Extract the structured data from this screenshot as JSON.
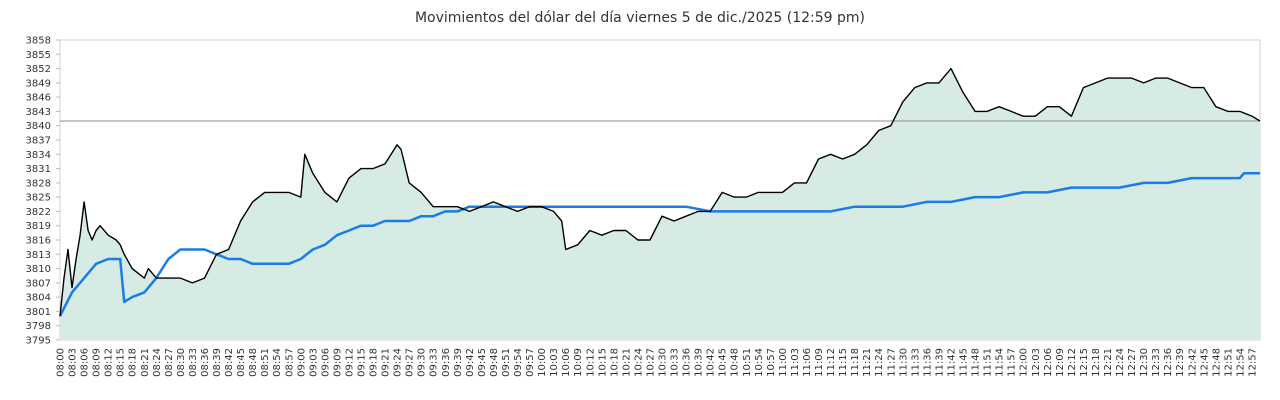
{
  "chart_data": {
    "type": "line",
    "title": "Movimientos del dólar del día viernes 5 de dic./2025 (12:59 pm)",
    "xlabel": "",
    "ylabel": "",
    "ylim": [
      3795,
      3858
    ],
    "y_ticks": [
      3795,
      3798,
      3801,
      3804,
      3807,
      3810,
      3813,
      3816,
      3819,
      3822,
      3825,
      3828,
      3831,
      3834,
      3837,
      3840,
      3843,
      3846,
      3849,
      3852,
      3855,
      3858
    ],
    "x_ticks": [
      "08:00",
      "08:03",
      "08:06",
      "08:09",
      "08:12",
      "08:15",
      "08:18",
      "08:21",
      "08:24",
      "08:27",
      "08:30",
      "08:33",
      "08:36",
      "08:39",
      "08:42",
      "08:45",
      "08:48",
      "08:51",
      "08:54",
      "08:57",
      "09:00",
      "09:03",
      "09:06",
      "09:09",
      "09:12",
      "09:15",
      "09:18",
      "09:21",
      "09:24",
      "09:27",
      "09:30",
      "09:33",
      "09:36",
      "09:39",
      "09:42",
      "09:45",
      "09:48",
      "09:51",
      "09:54",
      "09:57",
      "10:00",
      "10:03",
      "10:06",
      "10:09",
      "10:12",
      "10:15",
      "10:18",
      "10:21",
      "10:24",
      "10:27",
      "10:30",
      "10:33",
      "10:36",
      "10:39",
      "10:42",
      "10:45",
      "10:48",
      "10:51",
      "10:54",
      "10:57",
      "11:00",
      "11:03",
      "11:06",
      "11:09",
      "11:12",
      "11:15",
      "11:18",
      "11:21",
      "11:24",
      "11:27",
      "11:30",
      "11:33",
      "11:36",
      "11:39",
      "11:42",
      "11:45",
      "11:48",
      "11:51",
      "11:54",
      "11:57",
      "12:00",
      "12:03",
      "12:06",
      "12:09",
      "12:12",
      "12:15",
      "12:18",
      "12:21",
      "12:24",
      "12:27",
      "12:30",
      "12:33",
      "12:36",
      "12:39",
      "12:42",
      "12:45",
      "12:48",
      "12:51",
      "12:54",
      "12:57"
    ],
    "reference_line": 3841,
    "grid": false,
    "colors": {
      "price": "#000000",
      "average": "#1a7de6",
      "area_fill": "#d5ebe4",
      "reference": "#8c8c8c"
    },
    "series": [
      {
        "x": [
          "08:00",
          "08:01",
          "08:02",
          "08:03",
          "08:04",
          "08:05",
          "08:06",
          "08:07",
          "08:08",
          "08:09",
          "08:10",
          "08:12",
          "08:14",
          "08:15",
          "08:16",
          "08:18",
          "08:21",
          "08:22",
          "08:24",
          "08:27",
          "08:30",
          "08:33",
          "08:36",
          "08:39",
          "08:42",
          "08:45",
          "08:48",
          "08:51",
          "08:54",
          "08:57",
          "09:00",
          "09:01",
          "09:03",
          "09:06",
          "09:09",
          "09:12",
          "09:15",
          "09:18",
          "09:21",
          "09:24",
          "09:25",
          "09:27",
          "09:30",
          "09:33",
          "09:36",
          "09:39",
          "09:42",
          "09:45",
          "09:48",
          "09:51",
          "09:54",
          "09:57",
          "10:00",
          "10:03",
          "10:05",
          "10:06",
          "10:09",
          "10:12",
          "10:15",
          "10:18",
          "10:21",
          "10:24",
          "10:27",
          "10:30",
          "10:33",
          "10:36",
          "10:39",
          "10:42",
          "10:45",
          "10:48",
          "10:51",
          "10:54",
          "10:57",
          "11:00",
          "11:03",
          "11:06",
          "11:09",
          "11:12",
          "11:15",
          "11:18",
          "11:21",
          "11:24",
          "11:27",
          "11:30",
          "11:33",
          "11:36",
          "11:39",
          "11:41",
          "11:42",
          "11:45",
          "11:48",
          "11:51",
          "11:54",
          "11:57",
          "12:00",
          "12:03",
          "12:06",
          "12:09",
          "12:12",
          "12:15",
          "12:18",
          "12:21",
          "12:24",
          "12:27",
          "12:30",
          "12:33",
          "12:36",
          "12:39",
          "12:42",
          "12:45",
          "12:48",
          "12:51",
          "12:54",
          "12:57",
          "12:59"
        ],
        "values": [
          3800,
          3808,
          3814,
          3806,
          3812,
          3817,
          3824,
          3818,
          3816,
          3818,
          3819,
          3817,
          3816,
          3815,
          3813,
          3810,
          3808,
          3810,
          3808,
          3808,
          3808,
          3807,
          3808,
          3813,
          3814,
          3820,
          3824,
          3826,
          3826,
          3826,
          3825,
          3834,
          3830,
          3826,
          3824,
          3829,
          3831,
          3831,
          3832,
          3836,
          3835,
          3828,
          3826,
          3823,
          3823,
          3823,
          3822,
          3823,
          3824,
          3823,
          3822,
          3823,
          3823,
          3822,
          3820,
          3814,
          3815,
          3818,
          3817,
          3818,
          3818,
          3816,
          3816,
          3821,
          3820,
          3821,
          3822,
          3822,
          3826,
          3825,
          3825,
          3826,
          3826,
          3826,
          3828,
          3828,
          3833,
          3834,
          3833,
          3834,
          3836,
          3839,
          3840,
          3845,
          3848,
          3849,
          3849,
          3851,
          3852,
          3847,
          3843,
          3843,
          3844,
          3843,
          3842,
          3842,
          3844,
          3844,
          3842,
          3848,
          3849,
          3850,
          3850,
          3850,
          3849,
          3850,
          3850,
          3849,
          3848,
          3848,
          3844,
          3843,
          3843,
          3842,
          3841
        ]
      },
      {
        "x": [
          "08:00",
          "08:03",
          "08:06",
          "08:09",
          "08:12",
          "08:15",
          "08:16",
          "08:18",
          "08:21",
          "08:24",
          "08:27",
          "08:30",
          "08:33",
          "08:36",
          "08:39",
          "08:42",
          "08:45",
          "08:48",
          "08:51",
          "08:54",
          "08:57",
          "09:00",
          "09:03",
          "09:06",
          "09:09",
          "09:12",
          "09:15",
          "09:18",
          "09:21",
          "09:24",
          "09:27",
          "09:30",
          "09:33",
          "09:36",
          "09:39",
          "09:42",
          "09:45",
          "09:48",
          "09:51",
          "09:54",
          "09:57",
          "10:00",
          "10:06",
          "10:12",
          "10:18",
          "10:24",
          "10:30",
          "10:36",
          "10:42",
          "10:48",
          "10:54",
          "11:00",
          "11:06",
          "11:12",
          "11:18",
          "11:24",
          "11:30",
          "11:36",
          "11:42",
          "11:48",
          "11:54",
          "12:00",
          "12:06",
          "12:12",
          "12:18",
          "12:24",
          "12:30",
          "12:36",
          "12:42",
          "12:48",
          "12:54",
          "12:55",
          "12:59"
        ],
        "values": [
          3800,
          3805,
          3808,
          3811,
          3812,
          3812,
          3803,
          3804,
          3805,
          3808,
          3812,
          3814,
          3814,
          3814,
          3813,
          3812,
          3812,
          3811,
          3811,
          3811,
          3811,
          3812,
          3814,
          3815,
          3817,
          3818,
          3819,
          3819,
          3820,
          3820,
          3820,
          3821,
          3821,
          3822,
          3822,
          3823,
          3823,
          3823,
          3823,
          3823,
          3823,
          3823,
          3823,
          3823,
          3823,
          3823,
          3823,
          3823,
          3822,
          3822,
          3822,
          3822,
          3822,
          3822,
          3823,
          3823,
          3823,
          3824,
          3824,
          3825,
          3825,
          3826,
          3826,
          3827,
          3827,
          3827,
          3828,
          3828,
          3829,
          3829,
          3829,
          3830,
          3830
        ]
      }
    ]
  }
}
